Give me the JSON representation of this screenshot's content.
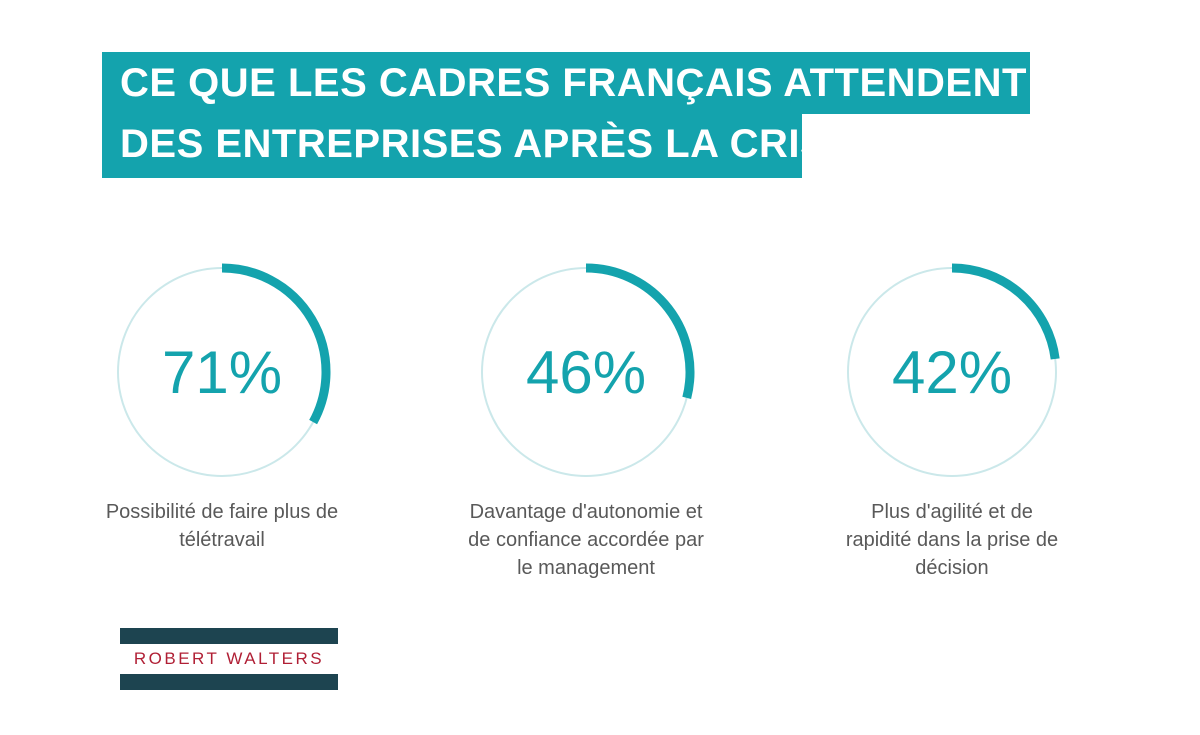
{
  "title": {
    "line1": "CE QUE LES CADRES FRANÇAIS ATTENDENT",
    "line2": "DES ENTREPRISES APRÈS LA CRISE"
  },
  "stats": [
    {
      "value_label": "71%",
      "percent": 71,
      "label_lines": [
        "Possibilité de faire plus de",
        "télétravail"
      ],
      "arc_fraction": 0.33
    },
    {
      "value_label": "46%",
      "percent": 46,
      "label_lines": [
        "Davantage d'autonomie et",
        "de confiance accordée par",
        "le management"
      ],
      "arc_fraction": 0.29
    },
    {
      "value_label": "42%",
      "percent": 42,
      "label_lines": [
        "Plus d'agilité et de",
        "rapidité dans la prise de",
        "décision"
      ],
      "arc_fraction": 0.23
    }
  ],
  "logo": {
    "text": "ROBERT WALTERS"
  },
  "colors": {
    "accent": "#14a3ad",
    "ring": "#cbe8ea",
    "logo_bar": "#1d4450",
    "logo_text": "#b01f35",
    "label_text": "#595959"
  }
}
